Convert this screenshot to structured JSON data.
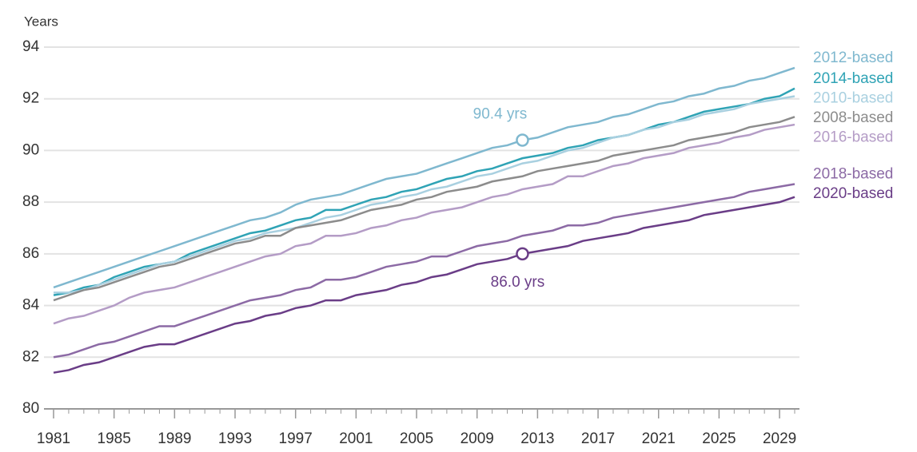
{
  "chart_data": {
    "type": "line",
    "y_label": "Years",
    "x": [
      1981,
      1982,
      1983,
      1984,
      1985,
      1986,
      1987,
      1988,
      1989,
      1990,
      1991,
      1992,
      1993,
      1994,
      1995,
      1996,
      1997,
      1998,
      1999,
      2000,
      2001,
      2002,
      2003,
      2004,
      2005,
      2006,
      2007,
      2008,
      2009,
      2010,
      2011,
      2012,
      2013,
      2014,
      2015,
      2016,
      2017,
      2018,
      2019,
      2020,
      2021,
      2022,
      2023,
      2024,
      2025,
      2026,
      2027,
      2028,
      2029,
      2030
    ],
    "xlim": [
      1981,
      2030
    ],
    "xticks": [
      1981,
      1985,
      1989,
      1993,
      1997,
      2001,
      2005,
      2009,
      2013,
      2017,
      2021,
      2025,
      2029
    ],
    "ylim": [
      80,
      94
    ],
    "yticks": [
      80,
      82,
      84,
      86,
      88,
      90,
      92,
      94
    ],
    "grid": true,
    "series": [
      {
        "name": "2012-based",
        "color": "#7fb8cf",
        "values": [
          84.7,
          84.9,
          85.1,
          85.3,
          85.5,
          85.7,
          85.9,
          86.1,
          86.3,
          86.5,
          86.7,
          86.9,
          87.1,
          87.3,
          87.4,
          87.6,
          87.9,
          88.1,
          88.2,
          88.3,
          88.5,
          88.7,
          88.9,
          89.0,
          89.1,
          89.3,
          89.5,
          89.7,
          89.9,
          90.1,
          90.2,
          90.4,
          90.5,
          90.7,
          90.9,
          91.0,
          91.1,
          91.3,
          91.4,
          91.6,
          91.8,
          91.9,
          92.1,
          92.2,
          92.4,
          92.5,
          92.7,
          92.8,
          93.0,
          93.2
        ]
      },
      {
        "name": "2014-based",
        "color": "#2fa3b5",
        "values": [
          84.4,
          84.5,
          84.7,
          84.8,
          85.1,
          85.3,
          85.5,
          85.6,
          85.7,
          86.0,
          86.2,
          86.4,
          86.6,
          86.8,
          86.9,
          87.1,
          87.3,
          87.4,
          87.7,
          87.7,
          87.9,
          88.1,
          88.2,
          88.4,
          88.5,
          88.7,
          88.9,
          89.0,
          89.2,
          89.3,
          89.5,
          89.7,
          89.8,
          89.9,
          90.1,
          90.2,
          90.4,
          90.5,
          90.6,
          90.8,
          91.0,
          91.1,
          91.3,
          91.5,
          91.6,
          91.7,
          91.8,
          92.0,
          92.1,
          92.4
        ]
      },
      {
        "name": "2010-based",
        "color": "#a9d0e0",
        "values": [
          84.5,
          84.5,
          84.6,
          84.8,
          85.0,
          85.2,
          85.4,
          85.6,
          85.7,
          85.9,
          86.1,
          86.3,
          86.5,
          86.6,
          86.8,
          86.9,
          87.0,
          87.2,
          87.4,
          87.5,
          87.7,
          87.9,
          88.0,
          88.2,
          88.3,
          88.5,
          88.6,
          88.8,
          89.0,
          89.1,
          89.3,
          89.5,
          89.6,
          89.8,
          90.0,
          90.1,
          90.3,
          90.5,
          90.6,
          90.8,
          90.9,
          91.1,
          91.2,
          91.4,
          91.5,
          91.6,
          91.8,
          91.9,
          92.0,
          92.1
        ]
      },
      {
        "name": "2008-based",
        "color": "#8c8c8c",
        "values": [
          84.2,
          84.4,
          84.6,
          84.7,
          84.9,
          85.1,
          85.3,
          85.5,
          85.6,
          85.8,
          86.0,
          86.2,
          86.4,
          86.5,
          86.7,
          86.7,
          87.0,
          87.1,
          87.2,
          87.3,
          87.5,
          87.7,
          87.8,
          87.9,
          88.1,
          88.2,
          88.4,
          88.5,
          88.6,
          88.8,
          88.9,
          89.0,
          89.2,
          89.3,
          89.4,
          89.5,
          89.6,
          89.8,
          89.9,
          90.0,
          90.1,
          90.2,
          90.4,
          90.5,
          90.6,
          90.7,
          90.9,
          91.0,
          91.1,
          91.3
        ]
      },
      {
        "name": "2016-based",
        "color": "#b49cc6",
        "values": [
          83.3,
          83.5,
          83.6,
          83.8,
          84.0,
          84.3,
          84.5,
          84.6,
          84.7,
          84.9,
          85.1,
          85.3,
          85.5,
          85.7,
          85.9,
          86.0,
          86.3,
          86.4,
          86.7,
          86.7,
          86.8,
          87.0,
          87.1,
          87.3,
          87.4,
          87.6,
          87.7,
          87.8,
          88.0,
          88.2,
          88.3,
          88.5,
          88.6,
          88.7,
          89.0,
          89.0,
          89.2,
          89.4,
          89.5,
          89.7,
          89.8,
          89.9,
          90.1,
          90.2,
          90.3,
          90.5,
          90.6,
          90.8,
          90.9,
          91.0
        ]
      },
      {
        "name": "2018-based",
        "color": "#8c6aa5",
        "values": [
          82.0,
          82.1,
          82.3,
          82.5,
          82.6,
          82.8,
          83.0,
          83.2,
          83.2,
          83.4,
          83.6,
          83.8,
          84.0,
          84.2,
          84.3,
          84.4,
          84.6,
          84.7,
          85.0,
          85.0,
          85.1,
          85.3,
          85.5,
          85.6,
          85.7,
          85.9,
          85.9,
          86.1,
          86.3,
          86.4,
          86.5,
          86.7,
          86.8,
          86.9,
          87.1,
          87.1,
          87.2,
          87.4,
          87.5,
          87.6,
          87.7,
          87.8,
          87.9,
          88.0,
          88.1,
          88.2,
          88.4,
          88.5,
          88.6,
          88.7
        ]
      },
      {
        "name": "2020-based",
        "color": "#6a3d87",
        "values": [
          81.4,
          81.5,
          81.7,
          81.8,
          82.0,
          82.2,
          82.4,
          82.5,
          82.5,
          82.7,
          82.9,
          83.1,
          83.3,
          83.4,
          83.6,
          83.7,
          83.9,
          84.0,
          84.2,
          84.2,
          84.4,
          84.5,
          84.6,
          84.8,
          84.9,
          85.1,
          85.2,
          85.4,
          85.6,
          85.7,
          85.8,
          86.0,
          86.1,
          86.2,
          86.3,
          86.5,
          86.6,
          86.7,
          86.8,
          87.0,
          87.1,
          87.2,
          87.3,
          87.5,
          87.6,
          87.7,
          87.8,
          87.9,
          88.0,
          88.2
        ]
      }
    ],
    "annotations": [
      {
        "text": "90.4 yrs",
        "x": 2012,
        "y": 90.4,
        "color": "#7fb8cf"
      },
      {
        "text": "86.0 yrs",
        "x": 2012,
        "y": 86.0,
        "color": "#6a3d87"
      }
    ]
  }
}
